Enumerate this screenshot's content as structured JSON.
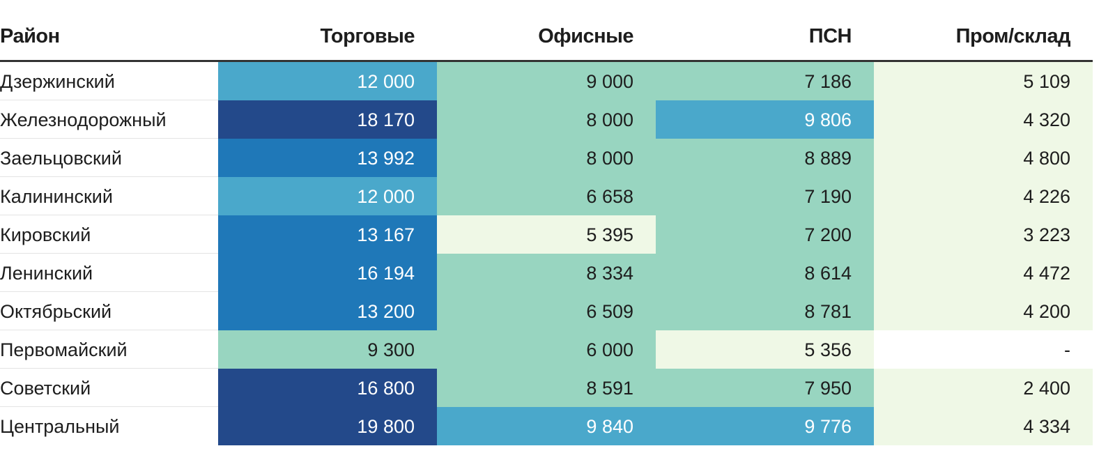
{
  "table": {
    "header": [
      "Район",
      "Торговые",
      "Офисные",
      "ПСН",
      "Пром/склад"
    ],
    "rows": [
      {
        "cells": [
          "Дзержинский",
          "12 000",
          "9 000",
          "7 186",
          "5 109"
        ],
        "colors": [
          "#4aa8cb",
          "#98d5c0",
          "#98d5c0",
          "#eff8e6"
        ]
      },
      {
        "cells": [
          "Железнодорожный",
          "18 170",
          "8 000",
          "9 806",
          "4 320"
        ],
        "colors": [
          "#23498a",
          "#98d5c0",
          "#4aa8cb",
          "#eff8e6"
        ]
      },
      {
        "cells": [
          "Заельцовский",
          "13 992",
          "8 000",
          "8 889",
          "4 800"
        ],
        "colors": [
          "#1f78b8",
          "#98d5c0",
          "#98d5c0",
          "#eff8e6"
        ]
      },
      {
        "cells": [
          "Калининский",
          "12 000",
          "6 658",
          "7 190",
          "4 226"
        ],
        "colors": [
          "#4aa8cb",
          "#98d5c0",
          "#98d5c0",
          "#eff8e6"
        ]
      },
      {
        "cells": [
          "Кировский",
          "13 167",
          "5 395",
          "7 200",
          "3 223"
        ],
        "colors": [
          "#1f78b8",
          "#eff8e6",
          "#98d5c0",
          "#eff8e6"
        ]
      },
      {
        "cells": [
          "Ленинский",
          "16 194",
          "8 334",
          "8 614",
          "4 472"
        ],
        "colors": [
          "#1f78b8",
          "#98d5c0",
          "#98d5c0",
          "#eff8e6"
        ]
      },
      {
        "cells": [
          "Октябрьский",
          "13 200",
          "6 509",
          "8 781",
          "4 200"
        ],
        "colors": [
          "#1f78b8",
          "#98d5c0",
          "#98d5c0",
          "#eff8e6"
        ]
      },
      {
        "cells": [
          "Первомайский",
          "9 300",
          "6 000",
          "5 356",
          "-"
        ],
        "colors": [
          "#98d5c0",
          "#98d5c0",
          "#eff8e6",
          "#ffffff"
        ]
      },
      {
        "cells": [
          "Советский",
          "16 800",
          "8 591",
          "7 950",
          "2 400"
        ],
        "colors": [
          "#23498a",
          "#98d5c0",
          "#98d5c0",
          "#eff8e6"
        ]
      },
      {
        "cells": [
          "Центральный",
          "19 800",
          "9 840",
          "9 776",
          "4 334"
        ],
        "colors": [
          "#23498a",
          "#4aa8cb",
          "#4aa8cb",
          "#eff8e6"
        ]
      }
    ]
  }
}
